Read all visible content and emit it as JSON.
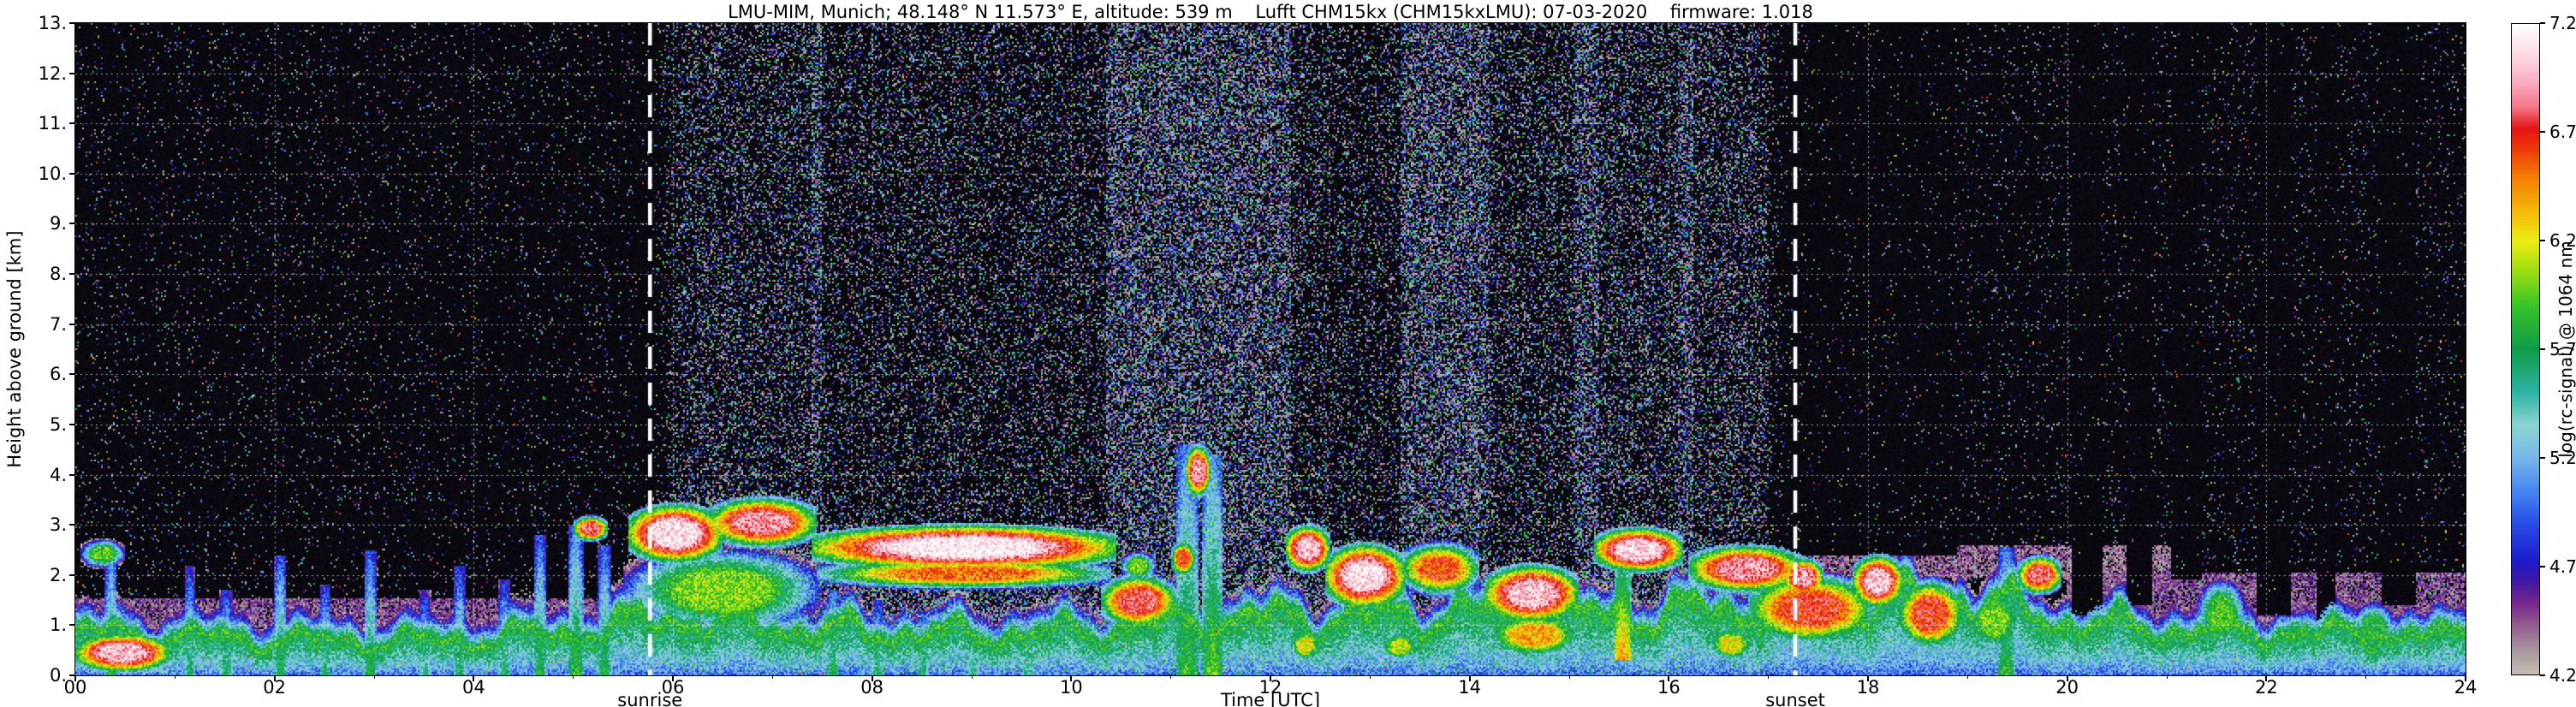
{
  "title": "LMU-MIM, Munich; 48.148° N 11.573° E, altitude: 539 m    Lufft CHM15kx (CHM15kxLMU): 07-03-2020    firmware: 1.018",
  "axes": {
    "x_label": "Time [UTC]",
    "y_label": "Height above ground [km]",
    "x_ticks": [
      "00",
      "02",
      "04",
      "06",
      "08",
      "10",
      "12",
      "14",
      "16",
      "18",
      "20",
      "22",
      "24"
    ],
    "y_ticks": [
      "0.",
      "1.",
      "2.",
      "3.",
      "4.",
      "5.",
      "6.",
      "7.",
      "8.",
      "9.",
      "10.",
      "11.",
      "12.",
      "13."
    ]
  },
  "colorbar": {
    "label": "log(rc-signal) @ 1064 nm",
    "ticks": [
      "7.2",
      "6.7",
      "6.2",
      "5.7",
      "5.2",
      "4.7",
      "4.2"
    ],
    "min": 4.2,
    "max": 7.2
  },
  "annotations": {
    "sunrise_label": "sunrise",
    "sunset_label": "sunset",
    "sunrise_hour": 5.77,
    "sunset_hour": 17.27
  },
  "chart_data": {
    "type": "heatmap",
    "x_unit": "hours UTC",
    "y_unit": "km above ground",
    "x_range": [
      0,
      24
    ],
    "y_range": [
      0,
      13
    ],
    "value_label": "log(rc-signal) @ 1064 nm",
    "value_range": [
      4.2,
      7.2
    ],
    "background": "#000000",
    "grid": {
      "color": "#ffffff",
      "style": "dotted"
    },
    "sunrise_hour": 5.77,
    "sunset_hour": 17.27,
    "colormap_stops": [
      [
        4.2,
        "#c6beb4"
      ],
      [
        4.3,
        "#a89aa0"
      ],
      [
        4.42,
        "#96608e"
      ],
      [
        4.52,
        "#7a2a8c"
      ],
      [
        4.62,
        "#4418a0"
      ],
      [
        4.72,
        "#1c1ccc"
      ],
      [
        4.9,
        "#2850e8"
      ],
      [
        5.05,
        "#4888f0"
      ],
      [
        5.2,
        "#7ab6ea"
      ],
      [
        5.35,
        "#8cd4d0"
      ],
      [
        5.5,
        "#2cb4a4"
      ],
      [
        5.7,
        "#109c48"
      ],
      [
        5.9,
        "#38c428"
      ],
      [
        6.05,
        "#96dc14"
      ],
      [
        6.2,
        "#ecec14"
      ],
      [
        6.35,
        "#f4b409"
      ],
      [
        6.5,
        "#f47c04"
      ],
      [
        6.62,
        "#ee3c08"
      ],
      [
        6.72,
        "#e41414"
      ],
      [
        6.82,
        "#f4788c"
      ],
      [
        6.95,
        "#f8b4c8"
      ],
      [
        7.05,
        "#fcd8e0"
      ],
      [
        7.2,
        "#ffffff"
      ]
    ],
    "boundary_layer_top_km_by_hour": [
      0.9,
      0.8,
      0.75,
      0.7,
      0.75,
      0.9,
      1.2,
      1.0,
      0.9,
      0.85,
      0.9,
      1.1,
      1.2,
      1.2,
      1.3,
      1.2,
      1.3,
      1.4,
      1.5,
      1.6,
      1.1,
      0.95,
      0.9,
      0.85,
      0.8
    ],
    "noise": {
      "night_speckle_p": 0.045,
      "day_speckle_p": 0.5,
      "bright_dot_p": 0.0025,
      "day_transition_h": 0.35
    },
    "feature_format": [
      "kind: b=cloud-blob, c=column, band=weak-signal-layer, d=attenuation-above",
      "t_start_h",
      "t_end_h",
      "h_min_km",
      "h_max_km",
      "log_signal_or_noise_factor"
    ],
    "features": [
      [
        "b",
        0.0,
        0.95,
        0.1,
        0.8,
        7.0
      ],
      [
        "b",
        0.05,
        0.5,
        2.15,
        2.7,
        5.9
      ],
      [
        "b",
        5.0,
        5.35,
        2.7,
        3.15,
        6.8
      ],
      [
        "b",
        5.55,
        6.5,
        2.3,
        3.35,
        7.1
      ],
      [
        "b",
        6.35,
        7.45,
        2.6,
        3.5,
        6.9
      ],
      [
        "b",
        5.5,
        7.5,
        0.9,
        2.5,
        6.0
      ],
      [
        "b",
        7.4,
        10.45,
        2.15,
        2.95,
        7.15
      ],
      [
        "b",
        7.45,
        10.4,
        1.75,
        2.3,
        6.5
      ],
      [
        "b",
        10.3,
        11.05,
        1.0,
        1.95,
        6.8
      ],
      [
        "b",
        10.5,
        10.85,
        1.9,
        2.45,
        6.0
      ],
      [
        "b",
        11.15,
        11.4,
        3.6,
        4.55,
        6.9
      ],
      [
        "b",
        11.0,
        11.25,
        2.0,
        2.65,
        6.6
      ],
      [
        "b",
        12.15,
        12.6,
        2.1,
        2.95,
        7.0
      ],
      [
        "b",
        12.55,
        13.35,
        1.4,
        2.55,
        7.1
      ],
      [
        "b",
        13.3,
        14.1,
        1.65,
        2.6,
        6.6
      ],
      [
        "b",
        14.15,
        15.1,
        1.1,
        2.15,
        7.0
      ],
      [
        "b",
        14.2,
        15.1,
        0.4,
        1.2,
        6.4
      ],
      [
        "b",
        15.25,
        16.15,
        2.1,
        2.9,
        7.05
      ],
      [
        "b",
        16.2,
        17.35,
        1.7,
        2.55,
        6.9
      ],
      [
        "b",
        12.2,
        12.5,
        0.3,
        0.9,
        6.2
      ],
      [
        "b",
        13.1,
        13.5,
        0.3,
        0.85,
        6.1
      ],
      [
        "b",
        16.4,
        16.85,
        0.3,
        0.95,
        6.2
      ],
      [
        "b",
        16.8,
        18.05,
        0.7,
        1.95,
        6.7
      ],
      [
        "b",
        17.15,
        17.55,
        1.6,
        2.3,
        6.9
      ],
      [
        "b",
        17.85,
        18.35,
        1.4,
        2.35,
        7.0
      ],
      [
        "b",
        18.3,
        18.95,
        0.6,
        1.85,
        6.7
      ],
      [
        "b",
        19.0,
        19.55,
        0.5,
        1.65,
        6.0
      ],
      [
        "b",
        19.5,
        19.95,
        1.65,
        2.35,
        6.8
      ],
      [
        "b",
        21.3,
        21.8,
        0.55,
        1.9,
        5.9
      ],
      [
        "b",
        22.1,
        22.45,
        0.45,
        1.25,
        5.6
      ],
      [
        "b",
        22.85,
        23.3,
        0.4,
        1.45,
        5.8
      ],
      [
        "b",
        23.5,
        23.85,
        0.3,
        1.05,
        5.5
      ],
      [
        "c",
        0.3,
        0.42,
        0,
        2.6,
        5.8
      ],
      [
        "c",
        1.1,
        1.2,
        0,
        2.2,
        5.7
      ],
      [
        "c",
        1.45,
        1.58,
        0,
        1.7,
        5.7
      ],
      [
        "c",
        2.0,
        2.12,
        0,
        2.4,
        5.8
      ],
      [
        "c",
        2.45,
        2.57,
        0,
        1.8,
        5.7
      ],
      [
        "c",
        2.9,
        3.02,
        0,
        2.5,
        5.8
      ],
      [
        "c",
        3.45,
        3.57,
        0,
        1.7,
        5.6
      ],
      [
        "c",
        3.8,
        3.92,
        0,
        2.2,
        5.7
      ],
      [
        "c",
        4.25,
        4.37,
        0,
        1.9,
        5.7
      ],
      [
        "c",
        4.6,
        4.73,
        0,
        2.8,
        5.8
      ],
      [
        "c",
        4.95,
        5.1,
        0,
        3.0,
        5.9
      ],
      [
        "c",
        5.25,
        5.38,
        0,
        2.6,
        5.8
      ],
      [
        "c",
        7.55,
        7.67,
        0,
        1.7,
        5.8
      ],
      [
        "c",
        8.0,
        8.12,
        0,
        1.5,
        5.7
      ],
      [
        "c",
        8.45,
        8.57,
        0,
        1.3,
        5.7
      ],
      [
        "c",
        8.95,
        9.07,
        0,
        1.1,
        5.6
      ],
      [
        "c",
        9.5,
        9.62,
        0,
        1.2,
        5.6
      ],
      [
        "c",
        11.05,
        11.28,
        0,
        4.6,
        5.9
      ],
      [
        "c",
        11.32,
        11.52,
        0,
        4.4,
        6.0
      ],
      [
        "c",
        15.45,
        15.62,
        0.3,
        2.1,
        6.5
      ],
      [
        "c",
        19.3,
        19.47,
        0,
        2.55,
        5.9
      ],
      [
        "band",
        20.0,
        24.0,
        0.85,
        2.05,
        4.45
      ],
      [
        "band",
        20.0,
        21.1,
        1.7,
        2.6,
        4.35
      ],
      [
        "band",
        17.3,
        20.0,
        1.95,
        2.6,
        4.4
      ],
      [
        "band",
        0.0,
        5.6,
        0.95,
        1.55,
        4.45
      ],
      [
        "d",
        5.6,
        7.4,
        3.6,
        13,
        0.55
      ],
      [
        "d",
        7.5,
        10.35,
        3.0,
        13,
        0.45
      ],
      [
        "d",
        12.2,
        12.6,
        3.0,
        13,
        0.5
      ],
      [
        "d",
        12.6,
        13.3,
        2.7,
        13,
        0.4
      ],
      [
        "d",
        14.2,
        15.05,
        2.2,
        13,
        0.55
      ],
      [
        "d",
        15.3,
        16.1,
        3.0,
        13,
        0.6
      ],
      [
        "d",
        16.25,
        17.3,
        2.6,
        13,
        0.6
      ],
      [
        "d",
        17.0,
        18.9,
        2.4,
        13,
        0.5
      ],
      [
        "d",
        20.05,
        20.35,
        1.2,
        13,
        0.2
      ],
      [
        "d",
        20.6,
        20.85,
        1.4,
        13,
        0.2
      ],
      [
        "d",
        21.05,
        21.35,
        1.9,
        13,
        0.25
      ],
      [
        "d",
        21.9,
        22.25,
        1.2,
        13,
        0.2
      ],
      [
        "d",
        22.5,
        22.7,
        1.1,
        13,
        0.25
      ],
      [
        "d",
        23.15,
        23.5,
        1.4,
        13,
        0.2
      ]
    ]
  }
}
